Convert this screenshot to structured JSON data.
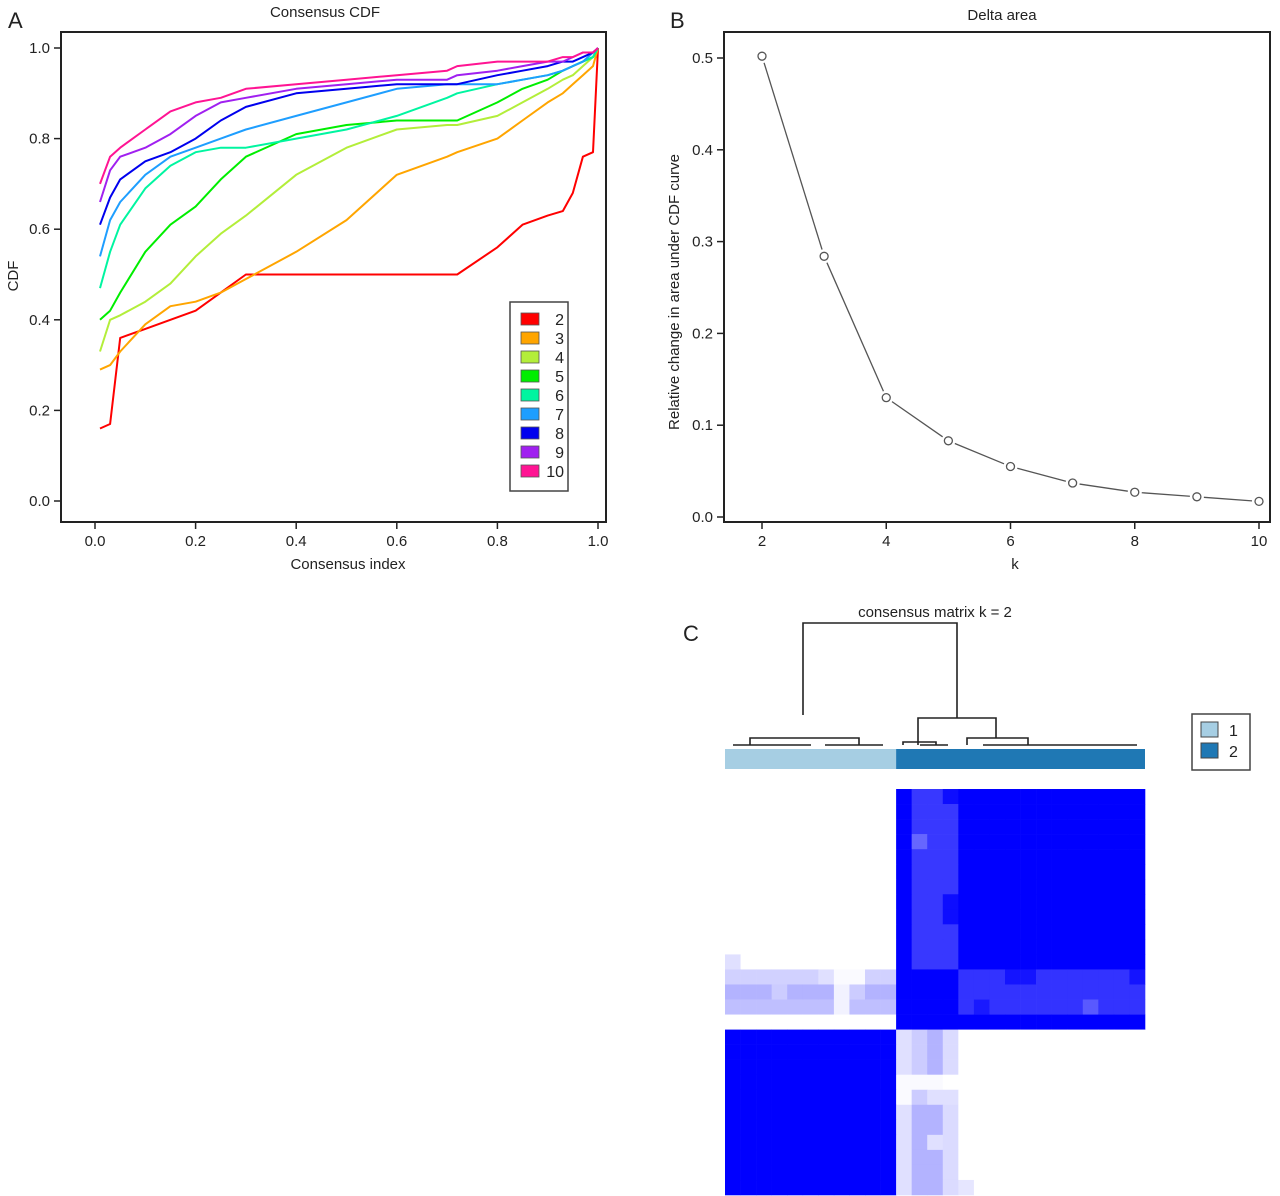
{
  "chart_data": [
    {
      "panel": "A",
      "type": "line",
      "title": "Consensus CDF",
      "xlabel": "Consensus index",
      "ylabel": "CDF",
      "xlim": [
        0.0,
        1.0
      ],
      "ylim": [
        0.0,
        1.0
      ],
      "xticks": [
        "0.0",
        "0.2",
        "0.4",
        "0.6",
        "0.8",
        "1.0"
      ],
      "yticks": [
        "0.0",
        "0.2",
        "0.4",
        "0.6",
        "0.8",
        "1.0"
      ],
      "grid": false,
      "legend_position": "bottom-right",
      "x": [
        0.01,
        0.03,
        0.05,
        0.1,
        0.15,
        0.2,
        0.25,
        0.3,
        0.4,
        0.5,
        0.6,
        0.7,
        0.72,
        0.8,
        0.85,
        0.9,
        0.93,
        0.95,
        0.97,
        0.99,
        1.0
      ],
      "series": [
        {
          "name": "2",
          "color": "#ff0000",
          "values": [
            0.16,
            0.17,
            0.36,
            0.38,
            0.4,
            0.42,
            0.46,
            0.5,
            0.5,
            0.5,
            0.5,
            0.5,
            0.5,
            0.56,
            0.61,
            0.63,
            0.64,
            0.68,
            0.76,
            0.77,
            1.0
          ]
        },
        {
          "name": "3",
          "color": "#ffa500",
          "values": [
            0.29,
            0.3,
            0.33,
            0.39,
            0.43,
            0.44,
            0.46,
            0.49,
            0.55,
            0.62,
            0.72,
            0.76,
            0.77,
            0.8,
            0.84,
            0.88,
            0.9,
            0.92,
            0.94,
            0.96,
            1.0
          ]
        },
        {
          "name": "4",
          "color": "#b3ee3a",
          "values": [
            0.33,
            0.4,
            0.41,
            0.44,
            0.48,
            0.54,
            0.59,
            0.63,
            0.72,
            0.78,
            0.82,
            0.83,
            0.83,
            0.85,
            0.88,
            0.91,
            0.93,
            0.94,
            0.96,
            0.98,
            1.0
          ]
        },
        {
          "name": "5",
          "color": "#00ee00",
          "values": [
            0.4,
            0.42,
            0.46,
            0.55,
            0.61,
            0.65,
            0.71,
            0.76,
            0.81,
            0.83,
            0.84,
            0.84,
            0.84,
            0.88,
            0.91,
            0.93,
            0.95,
            0.96,
            0.97,
            0.98,
            1.0
          ]
        },
        {
          "name": "6",
          "color": "#00f5a0",
          "values": [
            0.47,
            0.55,
            0.61,
            0.69,
            0.74,
            0.77,
            0.78,
            0.78,
            0.8,
            0.82,
            0.85,
            0.89,
            0.9,
            0.92,
            0.93,
            0.94,
            0.95,
            0.96,
            0.97,
            0.98,
            1.0
          ]
        },
        {
          "name": "7",
          "color": "#1e9eff",
          "values": [
            0.54,
            0.62,
            0.66,
            0.72,
            0.76,
            0.78,
            0.8,
            0.82,
            0.85,
            0.88,
            0.91,
            0.92,
            0.92,
            0.92,
            0.93,
            0.94,
            0.95,
            0.96,
            0.97,
            0.99,
            1.0
          ]
        },
        {
          "name": "8",
          "color": "#0000ee",
          "values": [
            0.61,
            0.67,
            0.71,
            0.75,
            0.77,
            0.8,
            0.84,
            0.87,
            0.9,
            0.91,
            0.92,
            0.92,
            0.92,
            0.94,
            0.95,
            0.96,
            0.97,
            0.97,
            0.98,
            0.99,
            1.0
          ]
        },
        {
          "name": "9",
          "color": "#a020f0",
          "values": [
            0.66,
            0.73,
            0.76,
            0.78,
            0.81,
            0.85,
            0.88,
            0.89,
            0.91,
            0.92,
            0.93,
            0.93,
            0.94,
            0.95,
            0.96,
            0.97,
            0.97,
            0.98,
            0.99,
            0.99,
            1.0
          ]
        },
        {
          "name": "10",
          "color": "#ff1493",
          "values": [
            0.7,
            0.76,
            0.78,
            0.82,
            0.86,
            0.88,
            0.89,
            0.91,
            0.92,
            0.93,
            0.94,
            0.95,
            0.96,
            0.97,
            0.97,
            0.97,
            0.98,
            0.98,
            0.99,
            0.99,
            1.0
          ]
        }
      ]
    },
    {
      "panel": "B",
      "type": "line",
      "title": "Delta area",
      "xlabel": "k",
      "ylabel": "Relative change in area under CDF curve",
      "xlim": [
        2,
        10
      ],
      "ylim": [
        0.0,
        0.5
      ],
      "xticks": [
        "2",
        "4",
        "6",
        "8",
        "10"
      ],
      "yticks": [
        "0.0",
        "0.1",
        "0.2",
        "0.3",
        "0.4",
        "0.5"
      ],
      "grid": false,
      "x": [
        2,
        3,
        4,
        5,
        6,
        7,
        8,
        9,
        10
      ],
      "values": [
        0.502,
        0.284,
        0.13,
        0.083,
        0.055,
        0.037,
        0.027,
        0.022,
        0.017
      ],
      "line_color": "#555555"
    },
    {
      "panel": "C",
      "type": "heatmap",
      "title": "consensus matrix k = 2",
      "legend_position": "right",
      "legend": [
        {
          "label": "1",
          "color": "#a6cee3"
        },
        {
          "label": "2",
          "color": "#1f78b4"
        }
      ],
      "clusters": {
        "cluster1_size": 11,
        "cluster2_size": 16
      },
      "high_color": "#0000ff",
      "low_color": "#ffffff"
    }
  ],
  "labels": {
    "panel_a": "A",
    "panel_b": "B",
    "panel_c": "C"
  }
}
